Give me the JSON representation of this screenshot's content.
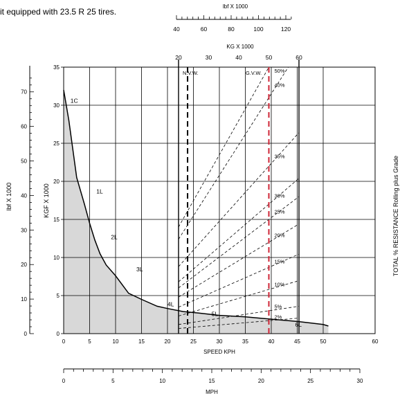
{
  "header": {
    "caption": "it equipped with 23.5 R 25 tires."
  },
  "chart_data": {
    "type": "line",
    "subtype": "rimpull-speed-gradeability",
    "axes": {
      "kgf": {
        "label": "KGF X 1000",
        "range": [
          0,
          35
        ],
        "ticks": [
          0,
          5,
          10,
          15,
          20,
          25,
          30,
          35
        ]
      },
      "lbf_left": {
        "label": "lbf X 1000",
        "ticks": [
          0,
          10,
          20,
          30,
          40,
          50,
          60,
          70
        ]
      },
      "speed_kph": {
        "label": "SPEED KPH",
        "range": [
          0,
          60
        ],
        "ticks": [
          0,
          5,
          10,
          15,
          20,
          25,
          30,
          35,
          40,
          45,
          50,
          60
        ]
      },
      "mph": {
        "label": "MPH",
        "range": [
          0,
          30
        ],
        "ticks": [
          0,
          5,
          10,
          15,
          20,
          25,
          30
        ]
      },
      "kg_top": {
        "label": "KG X 1000",
        "ticks": [
          20,
          30,
          40,
          50,
          60
        ]
      },
      "lbf_top": {
        "label": "lbf X 1000",
        "ticks": [
          40,
          60,
          80,
          100,
          120
        ]
      },
      "right": {
        "label": "TOTAL % RESISTANCE Rolling plus Grade"
      }
    },
    "reference_lines": [
      {
        "name": "N.V.W.",
        "kg": 23,
        "color": "#000000"
      },
      {
        "name": "G.V.W.",
        "kg": 50,
        "color": "#cc2233"
      }
    ],
    "rimpull_curve": {
      "x_kph": [
        0,
        1,
        2.5,
        4,
        5,
        6,
        7,
        8.2,
        10,
        12.5,
        15,
        18,
        20,
        23,
        26,
        30,
        35,
        40,
        45,
        50,
        51
      ],
      "y_kgf": [
        32,
        28,
        20.5,
        17,
        14.5,
        12.3,
        10.5,
        9,
        7.6,
        5.3,
        4.5,
        3.6,
        3.3,
        2.9,
        2.7,
        2.4,
        2.2,
        1.9,
        1.6,
        1.2,
        1.0
      ]
    },
    "gear_labels": [
      {
        "text": "1C",
        "x": 1.3,
        "y": 30.3
      },
      {
        "text": "1L",
        "x": 6.3,
        "y": 18.4
      },
      {
        "text": "2L",
        "x": 9.1,
        "y": 12.4
      },
      {
        "text": "3L",
        "x": 14.0,
        "y": 8.2
      },
      {
        "text": "4L",
        "x": 20.0,
        "y": 3.6
      },
      {
        "text": "5L",
        "x": 28.5,
        "y": 2.3
      },
      {
        "text": "6L",
        "x": 44.6,
        "y": 0.9
      }
    ],
    "resistance_lines": [
      {
        "label": "50%",
        "kgf_at_gvw": 35
      },
      {
        "label": "40%",
        "kgf_at_gvw": 31
      },
      {
        "label": "35%",
        "kgf_at_gvw": 22
      },
      {
        "label": "30%",
        "kgf_at_gvw": 17
      },
      {
        "label": "25%",
        "kgf_at_gvw": 15
      },
      {
        "label": "20%",
        "kgf_at_gvw": 12
      },
      {
        "label": "15%",
        "kgf_at_gvw": 8.7
      },
      {
        "label": "10%",
        "kgf_at_gvw": 5.8
      },
      {
        "label": "5%",
        "kgf_at_gvw": 3
      },
      {
        "label": "2%",
        "kgf_at_gvw": 1.7
      }
    ]
  }
}
